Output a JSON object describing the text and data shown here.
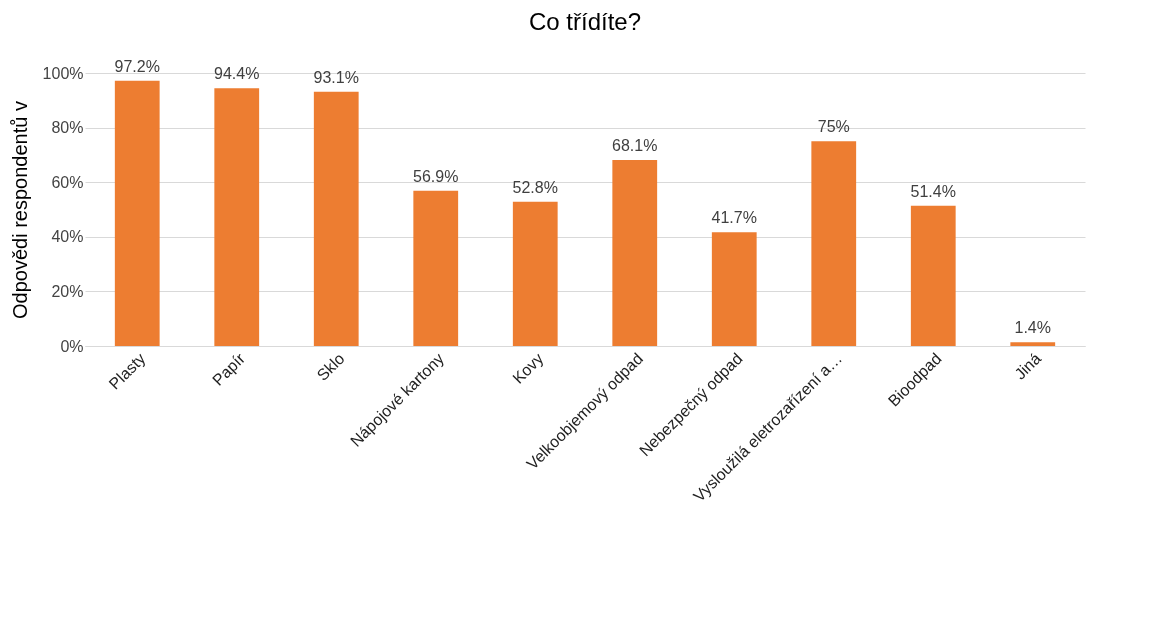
{
  "chart_data": {
    "type": "bar",
    "title": "Co třídíte?",
    "ylabel": "Odpovědi respondentů v",
    "categories": [
      "Plasty",
      "Papír",
      "Sklo",
      "Nápojové kartony",
      "Kovy",
      "Velkoobjemový odpad",
      "Nebezpečný odpad",
      "Vysloužilá eletrozařízení a…",
      "Bioodpad",
      "Jiná"
    ],
    "values": [
      97.2,
      94.4,
      93.1,
      56.9,
      52.8,
      68.1,
      41.7,
      75,
      51.4,
      1.4
    ],
    "value_labels": [
      "97.2%",
      "94.4%",
      "93.1%",
      "56.9%",
      "52.8%",
      "68.1%",
      "41.7%",
      "75%",
      "51.4%",
      "1.4%"
    ],
    "color": "#ed7d31",
    "ylim": [
      0,
      100
    ],
    "yticks": [
      {
        "value": 0,
        "label": "0%"
      },
      {
        "value": 20,
        "label": "20%"
      },
      {
        "value": 40,
        "label": "40%"
      },
      {
        "value": 60,
        "label": "60%"
      },
      {
        "value": 80,
        "label": "80%"
      },
      {
        "value": 100,
        "label": "100%"
      }
    ],
    "grid": "y"
  }
}
